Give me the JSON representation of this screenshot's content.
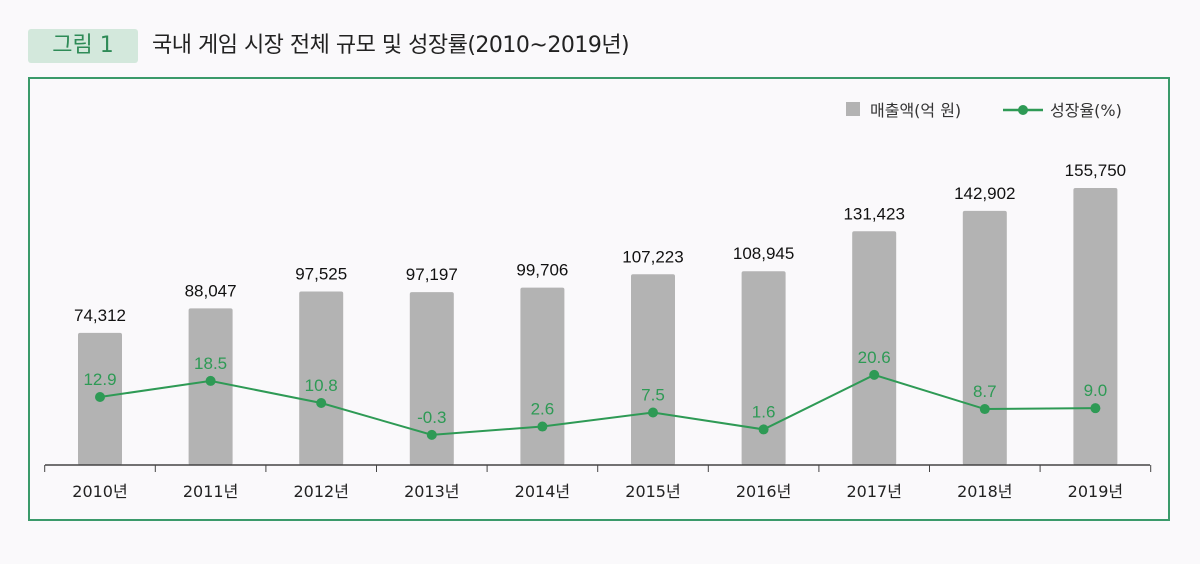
{
  "figure_tag": "그림 1",
  "title": "국내 게임 시장 전체 규모 및 성장률(2010~2019년)",
  "colors": {
    "bar": "#b3b3b3",
    "line": "#2e9a55",
    "frame": "#3a9a6a",
    "tag_bg": "#d3e8dc"
  },
  "chart_data": {
    "type": "bar+line",
    "categories": [
      "2010년",
      "2011년",
      "2012년",
      "2013년",
      "2014년",
      "2015년",
      "2016년",
      "2017년",
      "2018년",
      "2019년"
    ],
    "series": [
      {
        "name": "매출액(억 원)",
        "type": "bar",
        "values": [
          74312,
          88047,
          97525,
          97197,
          99706,
          107223,
          108945,
          131423,
          142902,
          155750
        ],
        "labels": [
          "74,312",
          "88,047",
          "97,525",
          "97,197",
          "99,706",
          "107,223",
          "108,945",
          "131,423",
          "142,902",
          "155,750"
        ]
      },
      {
        "name": "성장율(%)",
        "type": "line",
        "values": [
          12.9,
          18.5,
          10.8,
          -0.3,
          2.6,
          7.5,
          1.6,
          20.6,
          8.7,
          9.0
        ],
        "labels": [
          "12.9",
          "18.5",
          "10.8",
          "-0.3",
          "2.6",
          "7.5",
          "1.6",
          "20.6",
          "8.7",
          "9.0"
        ]
      }
    ],
    "legend": "top-right",
    "grid": false
  }
}
